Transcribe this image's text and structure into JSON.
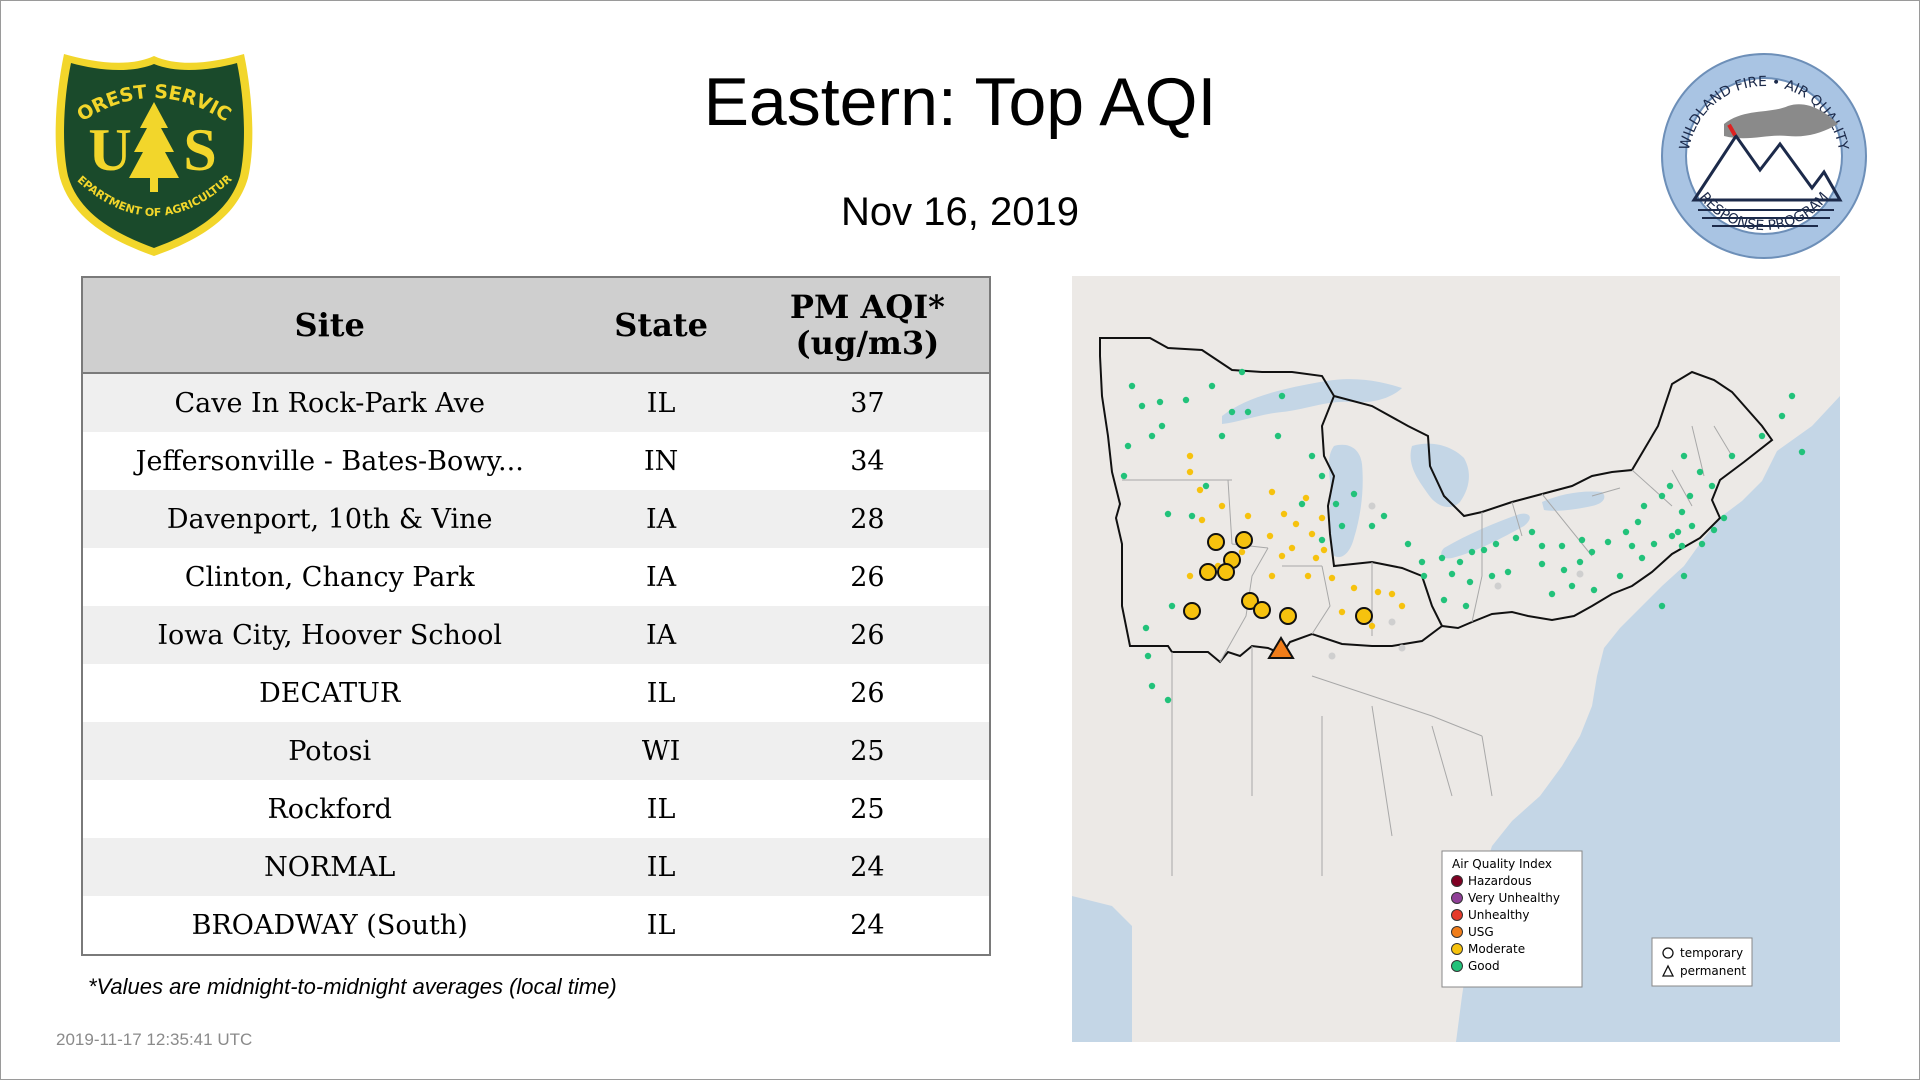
{
  "header": {
    "title": "Eastern: Top AQI",
    "date": "Nov 16, 2019"
  },
  "logos": {
    "forest_service": {
      "top": "FOREST SERVICE",
      "mark": "US",
      "bottom": "DEPARTMENT OF AGRICULTURE"
    },
    "wildland_fire": {
      "top": "WILDLAND FIRE • AIR QUALITY",
      "bottom": "RESPONSE PROGRAM"
    }
  },
  "table": {
    "headers": [
      "Site",
      "State",
      "PM AQI*",
      "(ug/m3)"
    ],
    "rows": [
      {
        "site": "Cave In Rock-Park Ave",
        "state": "IL",
        "aqi": "37"
      },
      {
        "site": "Jeffersonville - Bates-Bowy...",
        "state": "IN",
        "aqi": "34"
      },
      {
        "site": "Davenport, 10th & Vine",
        "state": "IA",
        "aqi": "28"
      },
      {
        "site": "Clinton, Chancy Park",
        "state": "IA",
        "aqi": "26"
      },
      {
        "site": "Iowa City, Hoover School",
        "state": "IA",
        "aqi": "26"
      },
      {
        "site": "DECATUR",
        "state": "IL",
        "aqi": "26"
      },
      {
        "site": "Potosi",
        "state": "WI",
        "aqi": "25"
      },
      {
        "site": "Rockford",
        "state": "IL",
        "aqi": "25"
      },
      {
        "site": "NORMAL",
        "state": "IL",
        "aqi": "24"
      },
      {
        "site": "BROADWAY (South)",
        "state": "IL",
        "aqi": "24"
      }
    ]
  },
  "footnote": "*Values are midnight-to-midnight averages (local time)",
  "timestamp": "2019-11-17 12:35:41 UTC",
  "map": {
    "legend": {
      "title": "Air Quality Index",
      "categories": [
        {
          "label": "Hazardous",
          "color": "#7e0023"
        },
        {
          "label": "Very Unhealthy",
          "color": "#8f3f97"
        },
        {
          "label": "Unhealthy",
          "color": "#e53a2b"
        },
        {
          "label": "USG",
          "color": "#f07d1a"
        },
        {
          "label": "Moderate",
          "color": "#f6c20e"
        },
        {
          "label": "Good",
          "color": "#22c27a"
        }
      ],
      "monitor_types": [
        {
          "label": "temporary",
          "shape": "circle"
        },
        {
          "label": "permanent",
          "shape": "triangle"
        }
      ]
    },
    "colors": {
      "land": "#ece9e6",
      "water": "#c4d6e6",
      "good": "#22c27a",
      "moderate": "#f6c20e",
      "usg": "#f07d1a",
      "no_data": "#cfcfcf"
    }
  }
}
